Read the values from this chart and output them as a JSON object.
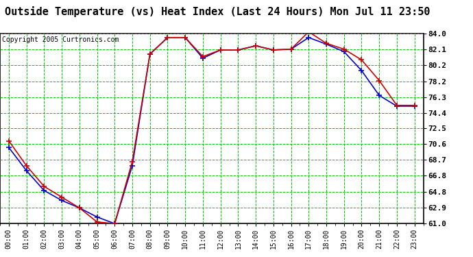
{
  "title": "Outside Temperature (vs) Heat Index (Last 24 Hours) Mon Jul 11 23:50",
  "copyright": "Copyright 2005 Curtronics.com",
  "x_labels": [
    "00:00",
    "01:00",
    "02:00",
    "03:00",
    "04:00",
    "05:00",
    "06:00",
    "07:00",
    "08:00",
    "09:00",
    "10:00",
    "11:00",
    "12:00",
    "13:00",
    "14:00",
    "15:00",
    "16:00",
    "17:00",
    "18:00",
    "19:00",
    "20:00",
    "21:00",
    "22:00",
    "23:00"
  ],
  "outside_temp": [
    71.0,
    68.0,
    65.5,
    64.2,
    62.9,
    61.2,
    61.0,
    68.5,
    81.5,
    83.5,
    83.5,
    81.2,
    82.0,
    82.0,
    82.5,
    82.0,
    82.1,
    84.2,
    82.8,
    82.1,
    80.8,
    78.3,
    75.3,
    75.3
  ],
  "heat_index": [
    70.2,
    67.4,
    65.0,
    63.8,
    62.9,
    61.8,
    61.0,
    68.0,
    81.5,
    83.5,
    83.5,
    81.0,
    82.0,
    82.0,
    82.5,
    82.0,
    82.1,
    83.5,
    82.7,
    81.8,
    79.5,
    76.5,
    75.2,
    75.2
  ],
  "temp_color": "#cc0000",
  "heat_color": "#0000cc",
  "bg_color": "#ffffff",
  "plot_bg": "#ffffff",
  "grid_color": "#00cc00",
  "text_color": "#000000",
  "border_color": "#000000",
  "ylim": [
    61.0,
    84.0
  ],
  "yticks": [
    61.0,
    62.9,
    64.8,
    66.8,
    68.7,
    70.6,
    72.5,
    74.4,
    76.3,
    78.2,
    80.2,
    82.1,
    84.0
  ],
  "title_fontsize": 11,
  "copyright_fontsize": 7,
  "xlabel_fontsize": 7,
  "ylabel_fontsize": 8
}
